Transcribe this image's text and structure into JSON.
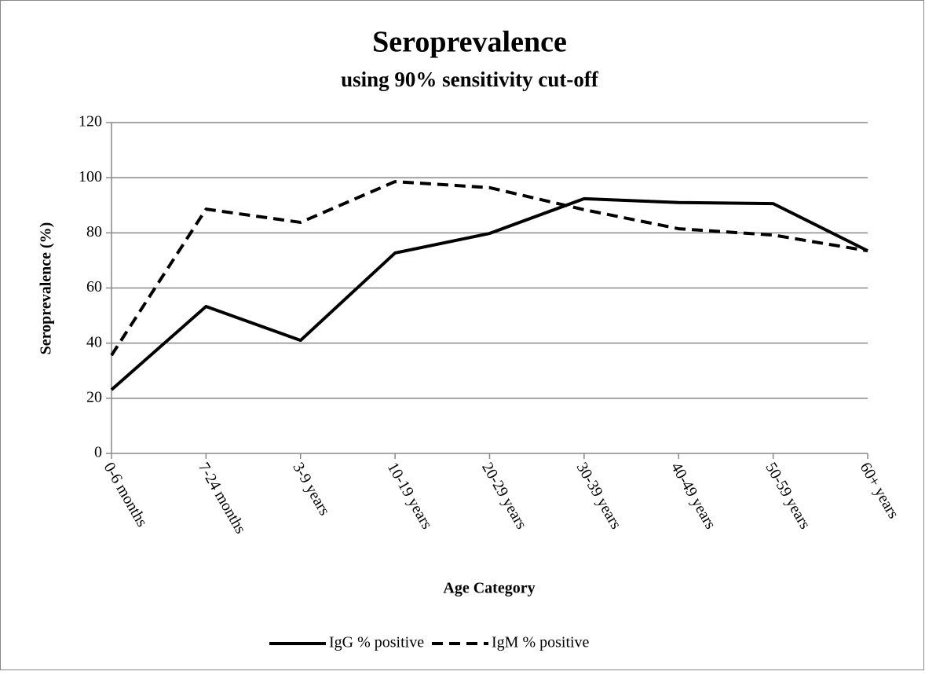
{
  "chart_data": {
    "type": "line",
    "title": "Seroprevalence",
    "subtitle": "using 90% sensitivity cut-off",
    "x_label": "Age Category",
    "y_label": "Seroprevalence (%)",
    "categories": [
      "0-6 months",
      "7-24 months",
      "3-9 years",
      "10-19 years",
      "20-29 years",
      "30-39 years",
      "40-49 years",
      "50-59 years",
      "60+ years"
    ],
    "series": [
      {
        "name": "IgG % positive",
        "color": "#000000",
        "dash": "solid",
        "values": [
          23.1,
          53.3,
          41,
          72.7,
          79.8,
          92.4,
          91,
          90.6,
          73.5
        ]
      },
      {
        "name": "IgM % positive",
        "color": "#000000",
        "dash": "dashed",
        "values": [
          35.6,
          88.6,
          83.8,
          98.6,
          96.4,
          88.4,
          81.5,
          79.2,
          73.5
        ]
      }
    ],
    "ylim": [
      0,
      120
    ],
    "yticks": [
      0,
      20,
      40,
      60,
      80,
      100,
      120
    ],
    "grid": true,
    "legend": "bottom"
  }
}
